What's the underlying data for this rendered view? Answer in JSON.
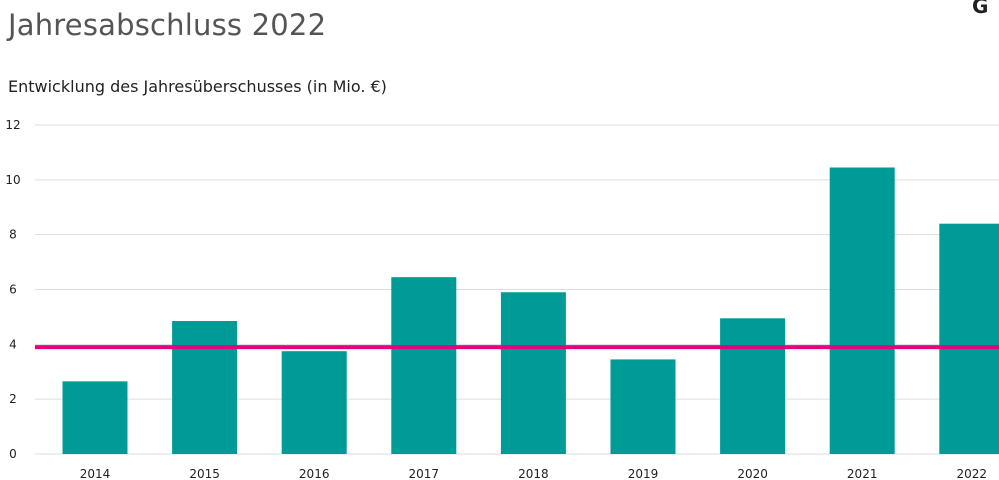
{
  "page": {
    "title": "Jahresabschluss 2022",
    "corner_text": "G"
  },
  "chart_data": {
    "type": "bar",
    "title": "Entwicklung des Jahresüberschusses (in Mio. €)",
    "xlabel": "",
    "ylabel": "",
    "categories": [
      "2014",
      "2015",
      "2016",
      "2017",
      "2018",
      "2019",
      "2020",
      "2021",
      "2022"
    ],
    "values": [
      2.65,
      4.85,
      3.75,
      6.45,
      5.9,
      3.45,
      4.95,
      10.45,
      8.4
    ],
    "ylim": [
      0,
      12
    ],
    "yticks": [
      "0",
      "2",
      "4",
      "6",
      "8",
      "10",
      "12"
    ],
    "reference_line": 3.9,
    "grid": true,
    "colors": {
      "bar": "#009b96",
      "reference_line": "#e6007e",
      "grid": "#dddddd"
    }
  }
}
